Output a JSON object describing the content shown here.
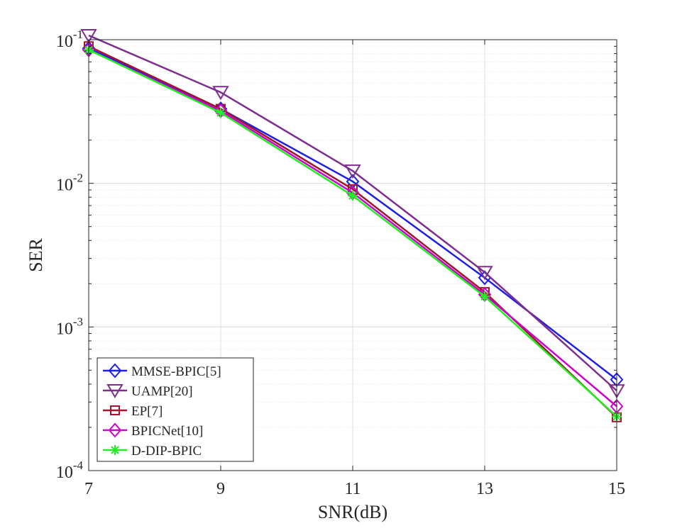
{
  "chart_data": {
    "type": "line",
    "title": "",
    "xlabel": "SNR(dB)",
    "ylabel": "SER",
    "x": [
      7,
      9,
      11,
      13,
      15
    ],
    "xlim": [
      7,
      15
    ],
    "ylim": [
      0.0001,
      0.1
    ],
    "yscale": "log",
    "grid": true,
    "minor_grid": true,
    "xticks": [
      7,
      9,
      11,
      13,
      15
    ],
    "xtick_labels": [
      "7",
      "9",
      "11",
      "13",
      "15"
    ],
    "yticks": [
      0.0001,
      0.001,
      0.01,
      0.1
    ],
    "ytick_labels": [
      {
        "base": "10",
        "exp": "-4"
      },
      {
        "base": "10",
        "exp": "-3"
      },
      {
        "base": "10",
        "exp": "-2"
      },
      {
        "base": "10",
        "exp": "-1"
      }
    ],
    "legend_position": "bottom-left",
    "series": [
      {
        "name": "MMSE-BPIC[5]",
        "color": "#1f1fe6",
        "marker": "diamond",
        "values": [
          0.087,
          0.033,
          0.0103,
          0.0022,
          0.00043
        ]
      },
      {
        "name": "UAMP[20]",
        "color": "#7e2f8e",
        "marker": "triangle-down",
        "values": [
          0.107,
          0.043,
          0.0122,
          0.0024,
          0.00036
        ]
      },
      {
        "name": "EP[7]",
        "color": "#a2142f",
        "marker": "square",
        "values": [
          0.09,
          0.033,
          0.0091,
          0.00175,
          0.000235
        ]
      },
      {
        "name": "BPICNet[10]",
        "color": "#cc00cc",
        "marker": "diamond",
        "values": [
          0.085,
          0.032,
          0.0086,
          0.00168,
          0.00028
        ]
      },
      {
        "name": "D-DIP-BPIC",
        "color": "#22ee22",
        "marker": "asterisk",
        "values": [
          0.085,
          0.031,
          0.0082,
          0.00163,
          0.000238
        ]
      }
    ]
  }
}
